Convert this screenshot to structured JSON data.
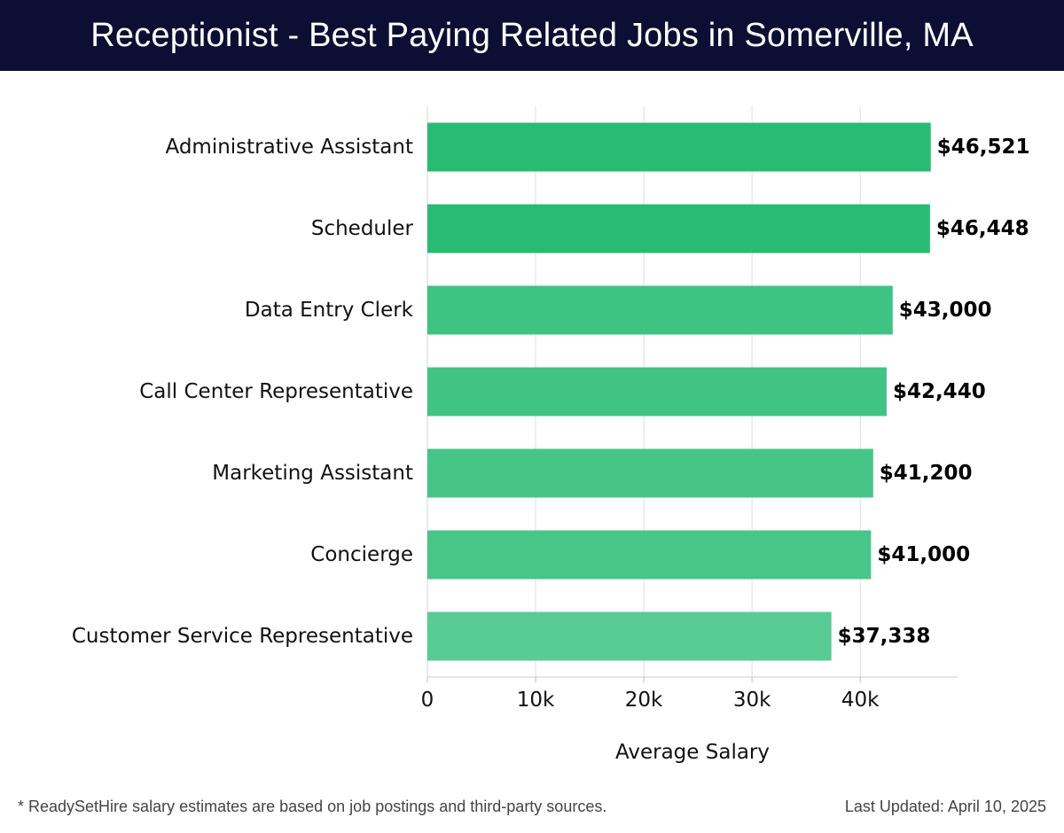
{
  "header": {
    "title": "Receptionist - Best Paying Related Jobs in Somerville, MA"
  },
  "chart_data": {
    "type": "bar",
    "orientation": "horizontal",
    "title": "Receptionist - Best Paying Related Jobs in Somerville, MA",
    "xlabel": "Average Salary",
    "ylabel": "",
    "xlim": [
      0,
      49000
    ],
    "grid": true,
    "x_ticks": [
      0,
      10000,
      20000,
      30000,
      40000
    ],
    "x_tick_labels": [
      "0",
      "10k",
      "20k",
      "30k",
      "40k"
    ],
    "categories": [
      "Administrative Assistant",
      "Scheduler",
      "Data Entry Clerk",
      "Call Center Representative",
      "Marketing Assistant",
      "Concierge",
      "Customer Service Representative"
    ],
    "values": [
      46521,
      46448,
      43000,
      42440,
      41200,
      41000,
      37338
    ],
    "value_labels": [
      "$46,521",
      "$46,448",
      "$43,000",
      "$42,440",
      "$41,200",
      "$41,000",
      "$37,338"
    ],
    "bar_colors": [
      "#2abb73",
      "#2abb73",
      "#3ec382",
      "#40c383",
      "#47c588",
      "#48c589",
      "#59cc95"
    ]
  },
  "footer": {
    "note": "* ReadySetHire salary estimates are based on job postings and third-party sources.",
    "updated": "Last Updated: April 10, 2025"
  }
}
